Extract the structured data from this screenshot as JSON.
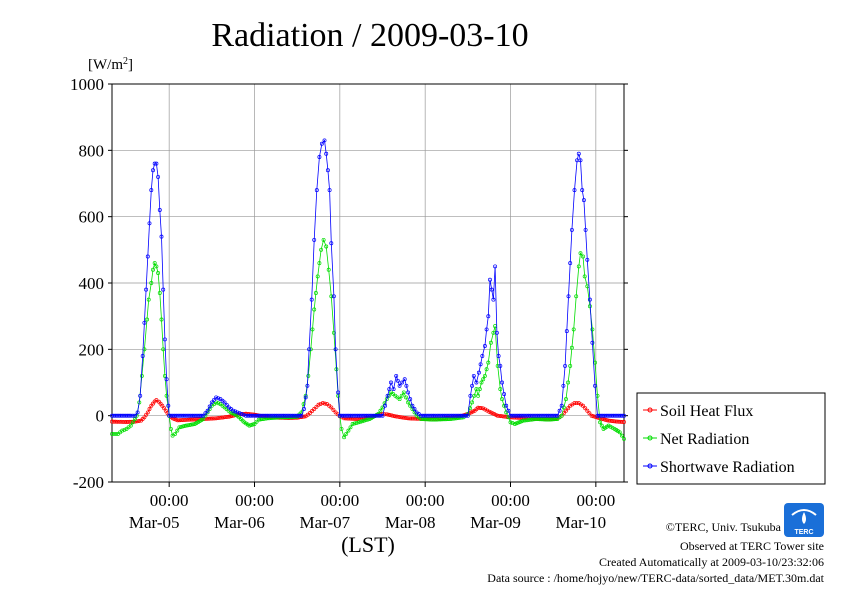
{
  "chart_data": {
    "type": "line",
    "title": "Radiation / 2009-03-10",
    "ylabel": "[W/m²]",
    "xlabel": "(LST)",
    "ylim": [
      -200,
      1000
    ],
    "yticks": [
      -200,
      0,
      200,
      400,
      600,
      800,
      1000
    ],
    "ytick_labels": [
      "-200",
      "0",
      "200",
      "400",
      "600",
      "800",
      "1000"
    ],
    "xlim": [
      -0.67,
      5.33
    ],
    "xticks": [
      {
        "x": 0,
        "time": "00:00",
        "date": "Mar-05"
      },
      {
        "x": 1,
        "time": "00:00",
        "date": "Mar-06"
      },
      {
        "x": 2,
        "time": "00:00",
        "date": "Mar-07"
      },
      {
        "x": 3,
        "time": "00:00",
        "date": "Mar-08"
      },
      {
        "x": 4,
        "time": "00:00",
        "date": "Mar-09"
      },
      {
        "x": 5,
        "time": "00:00",
        "date": "Mar-10"
      }
    ],
    "grid": true,
    "legend_position": "right",
    "series": [
      {
        "name": "Soil Heat Flux",
        "color": "#ff0000",
        "points": [
          [
            -0.67,
            -18
          ],
          [
            -0.5,
            -19
          ],
          [
            -0.4,
            -18
          ],
          [
            -0.33,
            -15
          ],
          [
            -0.29,
            -5
          ],
          [
            -0.25,
            10
          ],
          [
            -0.21,
            30
          ],
          [
            -0.17,
            43
          ],
          [
            -0.15,
            47
          ],
          [
            -0.12,
            42
          ],
          [
            -0.08,
            30
          ],
          [
            -0.04,
            15
          ],
          [
            0,
            0
          ],
          [
            0.04,
            -8
          ],
          [
            0.1,
            -14
          ],
          [
            0.25,
            -12
          ],
          [
            0.4,
            -10
          ],
          [
            0.55,
            -8
          ],
          [
            0.7,
            -3
          ],
          [
            0.8,
            3
          ],
          [
            0.9,
            6
          ],
          [
            1.0,
            3
          ],
          [
            1.1,
            -2
          ],
          [
            1.25,
            -6
          ],
          [
            1.4,
            -7
          ],
          [
            1.5,
            -6
          ],
          [
            1.6,
            -2
          ],
          [
            1.65,
            8
          ],
          [
            1.7,
            20
          ],
          [
            1.75,
            33
          ],
          [
            1.8,
            38
          ],
          [
            1.85,
            35
          ],
          [
            1.9,
            25
          ],
          [
            1.95,
            10
          ],
          [
            2.0,
            -2
          ],
          [
            2.05,
            -8
          ],
          [
            2.2,
            -10
          ],
          [
            2.35,
            -6
          ],
          [
            2.45,
            2
          ],
          [
            2.5,
            5
          ],
          [
            2.55,
            4
          ],
          [
            2.65,
            -2
          ],
          [
            2.8,
            -8
          ],
          [
            3.0,
            -10
          ],
          [
            3.2,
            -8
          ],
          [
            3.4,
            -3
          ],
          [
            3.5,
            5
          ],
          [
            3.58,
            15
          ],
          [
            3.62,
            24
          ],
          [
            3.68,
            22
          ],
          [
            3.75,
            12
          ],
          [
            3.85,
            0
          ],
          [
            4.0,
            -5
          ],
          [
            4.2,
            -8
          ],
          [
            4.4,
            -10
          ],
          [
            4.55,
            -8
          ],
          [
            4.6,
            0
          ],
          [
            4.65,
            15
          ],
          [
            4.7,
            30
          ],
          [
            4.75,
            38
          ],
          [
            4.8,
            38
          ],
          [
            4.85,
            30
          ],
          [
            4.9,
            15
          ],
          [
            4.95,
            0
          ],
          [
            5.05,
            -8
          ],
          [
            5.15,
            -15
          ],
          [
            5.25,
            -18
          ],
          [
            5.33,
            -19
          ]
        ]
      },
      {
        "name": "Net Radiation",
        "color": "#00dd00",
        "points": [
          [
            -0.67,
            -55
          ],
          [
            -0.6,
            -55
          ],
          [
            -0.55,
            -45
          ],
          [
            -0.5,
            -40
          ],
          [
            -0.45,
            -30
          ],
          [
            -0.4,
            -10
          ],
          [
            -0.38,
            0
          ],
          [
            -0.35,
            40
          ],
          [
            -0.32,
            120
          ],
          [
            -0.29,
            200
          ],
          [
            -0.26,
            290
          ],
          [
            -0.24,
            350
          ],
          [
            -0.21,
            400
          ],
          [
            -0.19,
            440
          ],
          [
            -0.17,
            460
          ],
          [
            -0.15,
            450
          ],
          [
            -0.13,
            430
          ],
          [
            -0.11,
            370
          ],
          [
            -0.09,
            290
          ],
          [
            -0.07,
            200
          ],
          [
            -0.05,
            120
          ],
          [
            -0.03,
            60
          ],
          [
            0,
            0
          ],
          [
            0.02,
            -40
          ],
          [
            0.04,
            -60
          ],
          [
            0.07,
            -55
          ],
          [
            0.12,
            -35
          ],
          [
            0.2,
            -30
          ],
          [
            0.3,
            -25
          ],
          [
            0.4,
            -10
          ],
          [
            0.45,
            10
          ],
          [
            0.5,
            30
          ],
          [
            0.55,
            40
          ],
          [
            0.6,
            35
          ],
          [
            0.65,
            25
          ],
          [
            0.72,
            10
          ],
          [
            0.8,
            0
          ],
          [
            0.88,
            -20
          ],
          [
            0.94,
            -30
          ],
          [
            1.0,
            -25
          ],
          [
            1.05,
            -12
          ],
          [
            1.15,
            -8
          ],
          [
            1.3,
            -5
          ],
          [
            1.4,
            -5
          ],
          [
            1.5,
            -3
          ],
          [
            1.55,
            10
          ],
          [
            1.6,
            60
          ],
          [
            1.63,
            120
          ],
          [
            1.66,
            200
          ],
          [
            1.7,
            320
          ],
          [
            1.74,
            420
          ],
          [
            1.78,
            500
          ],
          [
            1.81,
            530
          ],
          [
            1.84,
            510
          ],
          [
            1.87,
            440
          ],
          [
            1.9,
            360
          ],
          [
            1.93,
            250
          ],
          [
            1.96,
            140
          ],
          [
            1.98,
            60
          ],
          [
            2.0,
            0
          ],
          [
            2.02,
            -40
          ],
          [
            2.05,
            -65
          ],
          [
            2.1,
            -45
          ],
          [
            2.15,
            -25
          ],
          [
            2.22,
            -20
          ],
          [
            2.35,
            -10
          ],
          [
            2.45,
            5
          ],
          [
            2.5,
            25
          ],
          [
            2.55,
            50
          ],
          [
            2.6,
            70
          ],
          [
            2.65,
            60
          ],
          [
            2.7,
            50
          ],
          [
            2.75,
            70
          ],
          [
            2.8,
            40
          ],
          [
            2.85,
            20
          ],
          [
            2.9,
            0
          ],
          [
            2.95,
            -10
          ],
          [
            3.1,
            -12
          ],
          [
            3.3,
            -10
          ],
          [
            3.45,
            -5
          ],
          [
            3.5,
            5
          ],
          [
            3.55,
            40
          ],
          [
            3.6,
            80
          ],
          [
            3.62,
            60
          ],
          [
            3.66,
            100
          ],
          [
            3.7,
            120
          ],
          [
            3.74,
            160
          ],
          [
            3.77,
            220
          ],
          [
            3.8,
            250
          ],
          [
            3.82,
            270
          ],
          [
            3.85,
            150
          ],
          [
            3.88,
            80
          ],
          [
            3.9,
            50
          ],
          [
            3.95,
            10
          ],
          [
            4.0,
            -20
          ],
          [
            4.05,
            -25
          ],
          [
            4.15,
            -15
          ],
          [
            4.3,
            -10
          ],
          [
            4.45,
            -12
          ],
          [
            4.55,
            -10
          ],
          [
            4.6,
            0
          ],
          [
            4.65,
            50
          ],
          [
            4.7,
            150
          ],
          [
            4.74,
            260
          ],
          [
            4.77,
            360
          ],
          [
            4.8,
            450
          ],
          [
            4.82,
            490
          ],
          [
            4.85,
            480
          ],
          [
            4.87,
            420
          ],
          [
            4.9,
            390
          ],
          [
            4.93,
            330
          ],
          [
            4.96,
            260
          ],
          [
            4.99,
            160
          ],
          [
            5.02,
            60
          ],
          [
            5.05,
            -20
          ],
          [
            5.09,
            -40
          ],
          [
            5.15,
            -30
          ],
          [
            5.22,
            -40
          ],
          [
            5.28,
            -50
          ],
          [
            5.33,
            -70
          ]
        ]
      },
      {
        "name": "Shortwave Radiation",
        "color": "#0000ff",
        "points": [
          [
            -0.67,
            0
          ],
          [
            -0.45,
            0
          ],
          [
            -0.4,
            0
          ],
          [
            -0.37,
            10
          ],
          [
            -0.34,
            60
          ],
          [
            -0.31,
            180
          ],
          [
            -0.29,
            280
          ],
          [
            -0.27,
            380
          ],
          [
            -0.25,
            480
          ],
          [
            -0.23,
            580
          ],
          [
            -0.21,
            680
          ],
          [
            -0.19,
            740
          ],
          [
            -0.17,
            760
          ],
          [
            -0.15,
            760
          ],
          [
            -0.13,
            720
          ],
          [
            -0.11,
            620
          ],
          [
            -0.09,
            540
          ],
          [
            -0.07,
            380
          ],
          [
            -0.05,
            230
          ],
          [
            -0.03,
            110
          ],
          [
            -0.01,
            30
          ],
          [
            0,
            0
          ],
          [
            0.4,
            0
          ],
          [
            0.45,
            15
          ],
          [
            0.5,
            40
          ],
          [
            0.55,
            55
          ],
          [
            0.6,
            50
          ],
          [
            0.65,
            40
          ],
          [
            0.7,
            25
          ],
          [
            0.75,
            15
          ],
          [
            0.8,
            10
          ],
          [
            0.85,
            5
          ],
          [
            0.9,
            0
          ],
          [
            1.55,
            0
          ],
          [
            1.58,
            20
          ],
          [
            1.62,
            90
          ],
          [
            1.64,
            200
          ],
          [
            1.67,
            350
          ],
          [
            1.7,
            530
          ],
          [
            1.73,
            680
          ],
          [
            1.76,
            780
          ],
          [
            1.79,
            820
          ],
          [
            1.82,
            830
          ],
          [
            1.84,
            790
          ],
          [
            1.86,
            740
          ],
          [
            1.88,
            680
          ],
          [
            1.9,
            520
          ],
          [
            1.93,
            360
          ],
          [
            1.95,
            200
          ],
          [
            1.98,
            70
          ],
          [
            2.0,
            0
          ],
          [
            2.5,
            0
          ],
          [
            2.53,
            30
          ],
          [
            2.56,
            60
          ],
          [
            2.6,
            100
          ],
          [
            2.63,
            80
          ],
          [
            2.66,
            120
          ],
          [
            2.7,
            90
          ],
          [
            2.73,
            100
          ],
          [
            2.76,
            110
          ],
          [
            2.8,
            70
          ],
          [
            2.85,
            30
          ],
          [
            2.9,
            10
          ],
          [
            2.95,
            0
          ],
          [
            3.5,
            0
          ],
          [
            3.53,
            60
          ],
          [
            3.57,
            120
          ],
          [
            3.6,
            100
          ],
          [
            3.63,
            130
          ],
          [
            3.67,
            180
          ],
          [
            3.7,
            210
          ],
          [
            3.72,
            260
          ],
          [
            3.74,
            300
          ],
          [
            3.76,
            410
          ],
          [
            3.78,
            380
          ],
          [
            3.8,
            350
          ],
          [
            3.82,
            450
          ],
          [
            3.84,
            250
          ],
          [
            3.86,
            180
          ],
          [
            3.88,
            150
          ],
          [
            3.9,
            100
          ],
          [
            3.95,
            30
          ],
          [
            4.0,
            0
          ],
          [
            4.55,
            0
          ],
          [
            4.6,
            30
          ],
          [
            4.64,
            150
          ],
          [
            4.68,
            360
          ],
          [
            4.72,
            560
          ],
          [
            4.75,
            680
          ],
          [
            4.78,
            770
          ],
          [
            4.8,
            790
          ],
          [
            4.82,
            770
          ],
          [
            4.84,
            680
          ],
          [
            4.86,
            650
          ],
          [
            4.88,
            560
          ],
          [
            4.9,
            470
          ],
          [
            4.93,
            350
          ],
          [
            4.96,
            220
          ],
          [
            4.99,
            90
          ],
          [
            5.02,
            0
          ],
          [
            5.33,
            0
          ]
        ]
      }
    ]
  },
  "credits": {
    "copyright": "©TERC, Univ. Tsukuba",
    "site": "Observed at TERC Tower site",
    "created": "Created Automatically at 2009-03-10/23:32:06",
    "source": "Data source : /home/hojyo/new/TERC-data/sorted_data/MET.30m.dat"
  },
  "logo": {
    "text": "TERC",
    "color": "#1a6fd8"
  }
}
